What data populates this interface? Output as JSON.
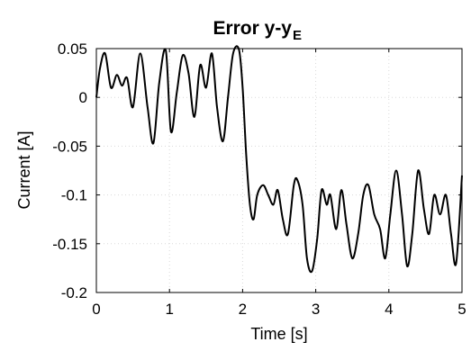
{
  "chart_data": {
    "type": "line",
    "title": "Error y-y",
    "title_subscript": "E",
    "xlabel": "Time [s]",
    "ylabel": "Current [A]",
    "xlim": [
      0,
      5
    ],
    "ylim": [
      -0.2,
      0.05
    ],
    "grid": true,
    "x_ticks": [
      0,
      1,
      2,
      3,
      4,
      5
    ],
    "x_tick_labels": [
      "0",
      "1",
      "2",
      "3",
      "4",
      "5"
    ],
    "y_ticks": [
      0.05,
      0,
      -0.05,
      -0.1,
      -0.15,
      -0.2
    ],
    "y_tick_labels": [
      "0.05",
      "0",
      "-0.05",
      "-0.1",
      "-0.15",
      "-0.2"
    ],
    "series": [
      {
        "color": "#000000",
        "x": [
          0,
          0.05,
          0.12,
          0.2,
          0.28,
          0.35,
          0.42,
          0.5,
          0.6,
          0.7,
          0.78,
          0.86,
          0.95,
          1.02,
          1.1,
          1.18,
          1.26,
          1.34,
          1.42,
          1.5,
          1.58,
          1.65,
          1.73,
          1.8,
          1.87,
          1.95,
          2.0,
          2.05,
          2.1,
          2.15,
          2.2,
          2.28,
          2.35,
          2.42,
          2.48,
          2.55,
          2.62,
          2.7,
          2.75,
          2.82,
          2.88,
          2.95,
          3.02,
          3.08,
          3.15,
          3.2,
          3.28,
          3.35,
          3.42,
          3.5,
          3.58,
          3.65,
          3.72,
          3.8,
          3.88,
          3.95,
          4.02,
          4.1,
          4.18,
          4.25,
          4.32,
          4.4,
          4.48,
          4.55,
          4.62,
          4.7,
          4.78,
          4.85,
          4.92,
          5.0
        ],
        "y": [
          0.0,
          0.03,
          0.045,
          0.01,
          0.023,
          0.012,
          0.02,
          -0.01,
          0.045,
          -0.01,
          -0.047,
          0.015,
          0.048,
          -0.035,
          0.005,
          0.043,
          0.025,
          -0.02,
          0.033,
          0.01,
          0.045,
          -0.01,
          -0.045,
          0.0,
          0.045,
          0.049,
          0.01,
          -0.06,
          -0.11,
          -0.125,
          -0.1,
          -0.09,
          -0.1,
          -0.11,
          -0.095,
          -0.125,
          -0.14,
          -0.09,
          -0.085,
          -0.11,
          -0.165,
          -0.178,
          -0.145,
          -0.095,
          -0.11,
          -0.1,
          -0.135,
          -0.095,
          -0.13,
          -0.165,
          -0.14,
          -0.1,
          -0.09,
          -0.12,
          -0.135,
          -0.165,
          -0.12,
          -0.075,
          -0.12,
          -0.173,
          -0.14,
          -0.075,
          -0.115,
          -0.14,
          -0.1,
          -0.12,
          -0.1,
          -0.14,
          -0.17,
          -0.08
        ]
      }
    ]
  }
}
